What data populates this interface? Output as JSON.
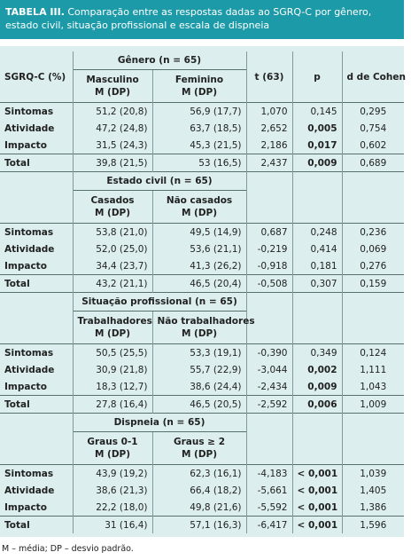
{
  "title": {
    "label": "TABELA III.",
    "text": "Comparação entre as respostas dadas ao SGRQ-C por gênero, estado civil, situação profissional e escala de dispneia"
  },
  "header": {
    "row_label": "SGRQ-C (%)",
    "t": "t (63)",
    "p": "p",
    "d": "d de Cohen"
  },
  "sections": [
    {
      "group": "Gênero (n = 65)",
      "col1": [
        "Masculino",
        "M (DP)"
      ],
      "col2": [
        "Feminino",
        "M (DP)"
      ],
      "rows": [
        [
          "Sintomas",
          "51,2 (20,8)",
          "56,9 (17,7)",
          "1,070",
          "0,145",
          "0,295"
        ],
        [
          "Atividade",
          "47,2 (24,8)",
          "63,7 (18,5)",
          "2,652",
          "0,005",
          "0,754"
        ],
        [
          "Impacto",
          "31,5 (24,3)",
          "45,3 (21,5)",
          "2,186",
          "0,017",
          "0,602"
        ],
        [
          "Total",
          "39,8 (21,5)",
          "53 (16,5)",
          "2,437",
          "0,009",
          "0,689"
        ]
      ],
      "significant": [
        false,
        true,
        true,
        true
      ]
    },
    {
      "group": "Estado civil (n = 65)",
      "col1": [
        "Casados",
        "M (DP)"
      ],
      "col2": [
        "Não casados",
        "M (DP)"
      ],
      "rows": [
        [
          "Sintomas",
          "53,8 (21,0)",
          "49,5 (14,9)",
          "0,687",
          "0,248",
          "0,236"
        ],
        [
          "Atividade",
          "52,0 (25,0)",
          "53,6 (21,1)",
          "-0,219",
          "0,414",
          "0,069"
        ],
        [
          "Impacto",
          "34,4 (23,7)",
          "41,3 (26,2)",
          "-0,918",
          "0,181",
          "0,276"
        ],
        [
          "Total",
          "43,2 (21,1)",
          "46,5 (20,4)",
          "-0,508",
          "0,307",
          "0,159"
        ]
      ],
      "significant": [
        false,
        false,
        false,
        false
      ]
    },
    {
      "group": "Situação profissional (n = 65)",
      "col1": [
        "Trabalhadores",
        "M (DP)"
      ],
      "col2": [
        "Não trabalhadores",
        "M (DP)"
      ],
      "rows": [
        [
          "Sintomas",
          "50,5 (25,5)",
          "53,3 (19,1)",
          "-0,390",
          "0,349",
          "0,124"
        ],
        [
          "Atividade",
          "30,9 (21,8)",
          "55,7 (22,9)",
          "-3,044",
          "0,002",
          "1,111"
        ],
        [
          "Impacto",
          "18,3 (12,7)",
          "38,6 (24,4)",
          "-2,434",
          "0,009",
          "1,043"
        ],
        [
          "Total",
          "27,8 (16,4)",
          "46,5 (20,5)",
          "-2,592",
          "0,006",
          "1,009"
        ]
      ],
      "significant": [
        false,
        true,
        true,
        true
      ]
    },
    {
      "group": "Dispneia (n = 65)",
      "col1": [
        "Graus 0-1",
        "M (DP)"
      ],
      "col2": [
        "Graus ≥ 2",
        "M (DP)"
      ],
      "rows": [
        [
          "Sintomas",
          "43,9 (19,2)",
          "62,3 (16,1)",
          "-4,183",
          "< 0,001",
          "1,039"
        ],
        [
          "Atividade",
          "38,6 (21,3)",
          "66,4 (18,2)",
          "-5,661",
          "< 0,001",
          "1,405"
        ],
        [
          "Impacto",
          "22,2 (18,0)",
          "49,8 (21,6)",
          "-5,592",
          "< 0,001",
          "1,386"
        ],
        [
          "Total",
          "31 (16,4)",
          "57,1 (16,3)",
          "-6,417",
          "< 0,001",
          "1,596"
        ]
      ],
      "significant": [
        true,
        true,
        true,
        true
      ]
    }
  ],
  "footnote": "M – média; DP – desvio padrão."
}
